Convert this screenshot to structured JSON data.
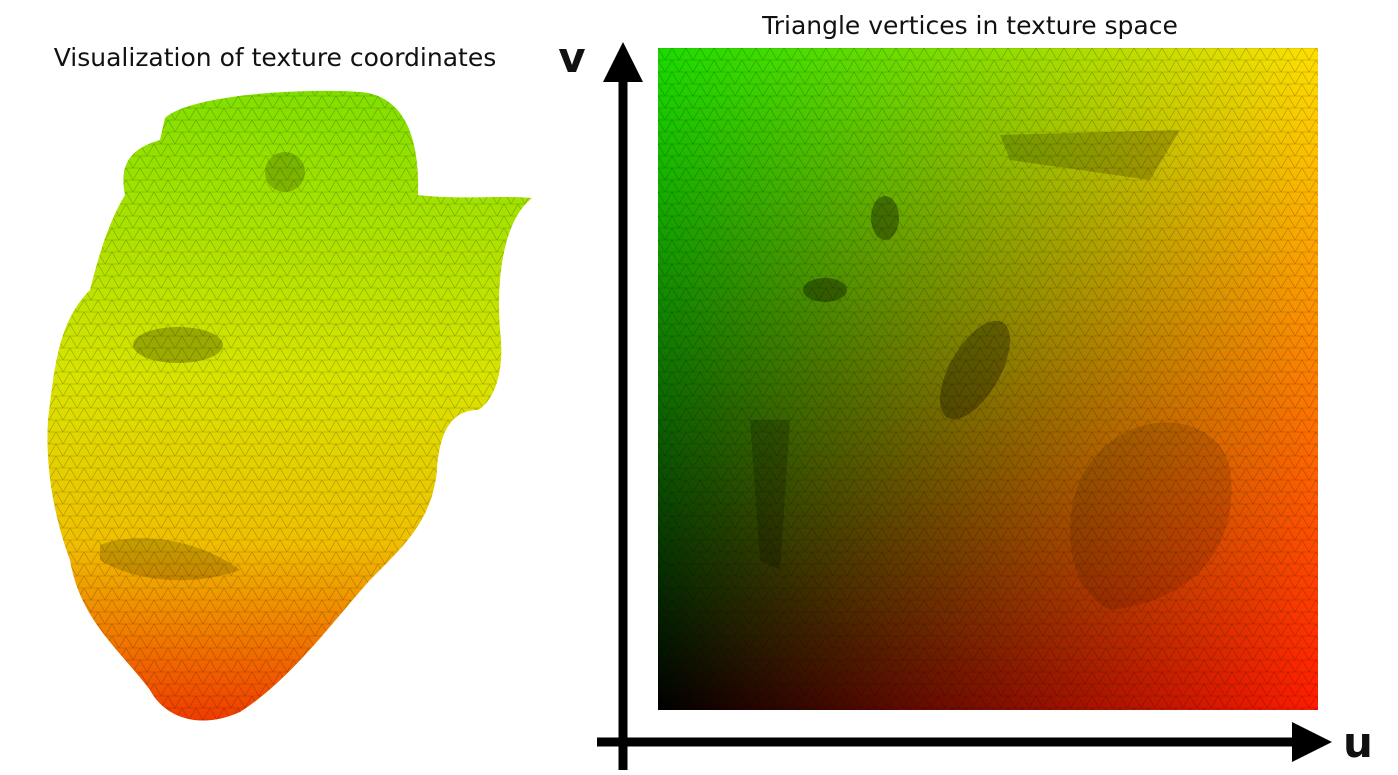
{
  "left": {
    "title": "Visualization of texture coordinates"
  },
  "right": {
    "title": "Triangle vertices in texture space",
    "axis_v": "v",
    "axis_u": "u"
  }
}
